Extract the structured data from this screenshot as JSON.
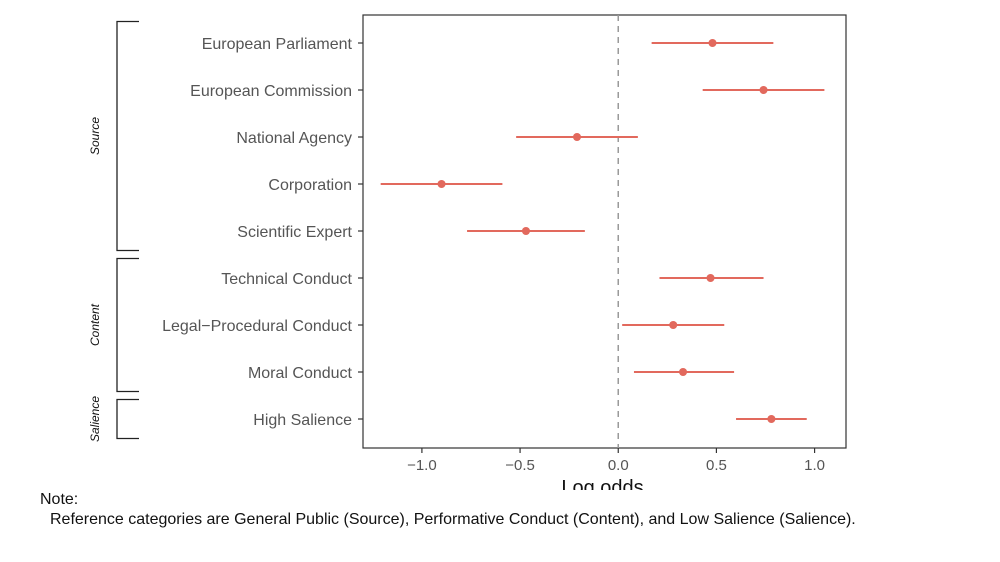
{
  "chart_data": {
    "type": "scatter",
    "subtype": "coefficient-plot",
    "xlabel": "Log odds",
    "xlim": [
      -1.3,
      1.16
    ],
    "x_ticks": [
      -1.0,
      -0.5,
      0.0,
      0.5,
      1.0
    ],
    "x_tick_labels": [
      "−1.0",
      "−0.5",
      "0.0",
      "0.5",
      "1.0"
    ],
    "reference_line_x": 0,
    "grid": false,
    "point_color": "#E2695D",
    "categories": [
      "European Parliament",
      "European Commission",
      "National Agency",
      "Corporation",
      "Scientific Expert",
      "Technical Conduct",
      "Legal−Procedural Conduct",
      "Moral Conduct",
      "High Salience"
    ],
    "estimates": [
      0.48,
      0.74,
      -0.21,
      -0.9,
      -0.47,
      0.47,
      0.28,
      0.33,
      0.78
    ],
    "ci_low": [
      0.17,
      0.43,
      -0.52,
      -1.21,
      -0.77,
      0.21,
      0.02,
      0.08,
      0.6
    ],
    "ci_high": [
      0.79,
      1.05,
      0.1,
      -0.59,
      -0.17,
      0.74,
      0.54,
      0.59,
      0.96
    ],
    "groups": [
      {
        "label": "Source",
        "first": 0,
        "last": 4
      },
      {
        "label": "Content",
        "first": 5,
        "last": 7
      },
      {
        "label": "Salience",
        "first": 8,
        "last": 8
      }
    ]
  },
  "note": {
    "title": "Note:",
    "text": "Reference categories are General Public (Source), Performative Conduct (Content), and Low Salience (Salience)."
  }
}
